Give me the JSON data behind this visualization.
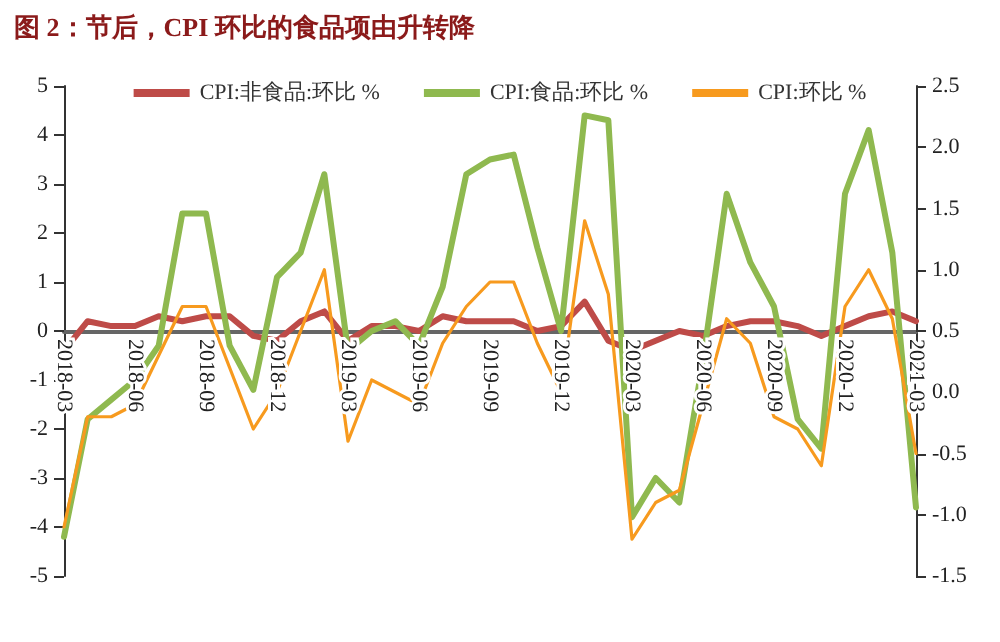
{
  "chart_data": {
    "type": "line",
    "title": "图 2：节后，CPI 环比的食品项由升转降",
    "categories": [
      "2018-03",
      null,
      null,
      "2018-06",
      null,
      null,
      "2018-09",
      null,
      null,
      "2018-12",
      null,
      null,
      "2019-03",
      null,
      null,
      "2019-06",
      null,
      null,
      "2019-09",
      null,
      null,
      "2019-12",
      null,
      null,
      "2020-03",
      null,
      null,
      "2020-06",
      null,
      null,
      "2020-09",
      null,
      null,
      "2020-12",
      null,
      null,
      "2021-03"
    ],
    "series": [
      {
        "name": "CPI:非食品:环比 %",
        "color": "#be4b48",
        "values": [
          -0.4,
          0.2,
          0.1,
          0.1,
          0.3,
          0.2,
          0.3,
          0.3,
          -0.1,
          -0.2,
          0.2,
          0.4,
          -0.2,
          0.1,
          0.1,
          0.0,
          0.3,
          0.2,
          0.2,
          0.2,
          0.0,
          0.1,
          0.6,
          -0.2,
          -0.4,
          -0.2,
          0.0,
          -0.1,
          0.1,
          0.2,
          0.2,
          0.1,
          -0.1,
          0.1,
          0.3,
          0.4,
          0.2
        ]
      },
      {
        "name": "CPI:食品:环比 %",
        "color": "#8fb94f",
        "values": [
          -4.2,
          -1.8,
          -1.4,
          -1.0,
          -0.3,
          2.4,
          2.4,
          -0.3,
          -1.2,
          1.1,
          1.6,
          3.2,
          -0.4,
          0.0,
          0.2,
          -0.3,
          0.9,
          3.2,
          3.5,
          3.6,
          1.7,
          0.0,
          4.4,
          4.3,
          -3.8,
          -3.0,
          -3.5,
          -0.6,
          2.8,
          1.4,
          0.5,
          -1.8,
          -2.4,
          2.8,
          4.1,
          1.6,
          -3.6
        ]
      },
      {
        "name": "CPI:环比 %",
        "color": "#f79a1e",
        "axis": "y2",
        "values": [
          -1.1,
          -0.2,
          -0.2,
          -0.1,
          0.3,
          0.7,
          0.7,
          0.2,
          -0.3,
          0.0,
          0.5,
          1.0,
          -0.4,
          0.1,
          0.0,
          -0.1,
          0.4,
          0.7,
          0.9,
          0.9,
          0.4,
          0.0,
          1.4,
          0.8,
          -1.2,
          -0.9,
          -0.8,
          -0.1,
          0.6,
          0.4,
          -0.2,
          -0.3,
          -0.6,
          0.7,
          1.0,
          0.6,
          -0.5
        ]
      }
    ],
    "ylim": [
      -5,
      5
    ],
    "yticks": [
      -5,
      -4,
      -3,
      -2,
      -1,
      0,
      1,
      2,
      3,
      4,
      5
    ],
    "y2lim": [
      -1.5,
      2.5
    ],
    "y2ticks": [
      -1.5,
      {
        "value": -1,
        "label": "-1.0"
      },
      -0.5,
      {
        "value": 0,
        "label": "0.0"
      },
      0.5,
      {
        "value": 1,
        "label": "1.0"
      },
      1.5,
      {
        "value": 2,
        "label": "2.0"
      },
      2.5
    ],
    "legend": "top",
    "grid": false,
    "marker": "none",
    "line_style": "solid"
  }
}
